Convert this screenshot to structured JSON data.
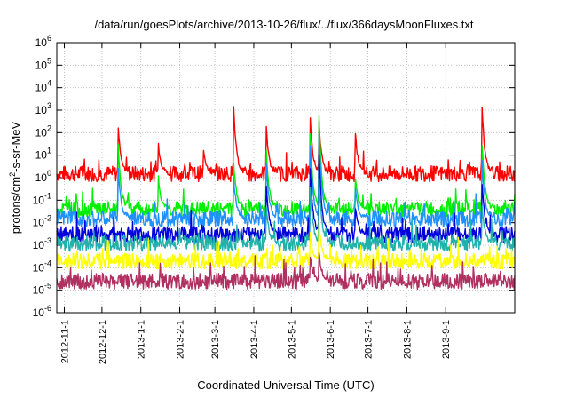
{
  "chart_data": {
    "type": "line",
    "title": "/data/run/goesPlots/archive/2013-10-26/flux/../flux/366daysMoonFluxes.txt",
    "xlabel": "Coordinated Universal Time (UTC)",
    "ylabel": "protons/cm2-s-sr-MeV",
    "y_scale": "log",
    "ylim": [
      1e-06,
      1000000.0
    ],
    "xlim": [
      "2012-10-26",
      "2013-10-26"
    ],
    "grid": true,
    "legend": "none",
    "y_ticks": [
      {
        "value": 1e-06,
        "base": "10",
        "exp": "-6"
      },
      {
        "value": 1e-05,
        "base": "10",
        "exp": "-5"
      },
      {
        "value": 0.0001,
        "base": "10",
        "exp": "-4"
      },
      {
        "value": 0.001,
        "base": "10",
        "exp": "-3"
      },
      {
        "value": 0.01,
        "base": "10",
        "exp": "-2"
      },
      {
        "value": 0.1,
        "base": "10",
        "exp": "-1"
      },
      {
        "value": 1,
        "base": "10",
        "exp": "0"
      },
      {
        "value": 10.0,
        "base": "10",
        "exp": "1"
      },
      {
        "value": 100.0,
        "base": "10",
        "exp": "2"
      },
      {
        "value": 1000.0,
        "base": "10",
        "exp": "3"
      },
      {
        "value": 10000.0,
        "base": "10",
        "exp": "4"
      },
      {
        "value": 100000.0,
        "base": "10",
        "exp": "5"
      },
      {
        "value": 1000000.0,
        "base": "10",
        "exp": "6"
      }
    ],
    "x_ticks": [
      "2012-11-1",
      "2012-12-1",
      "2013-1-1",
      "2013-2-1",
      "2013-3-1",
      "2013-4-1",
      "2013-5-1",
      "2013-6-1",
      "2013-7-1",
      "2013-8-1",
      "2013-9-1"
    ],
    "series": [
      {
        "color": "#ff0000",
        "baseline": 1.5,
        "spikes": [
          [
            "2012-12-14",
            200
          ],
          [
            "2013-1-15",
            30
          ],
          [
            "2013-2-20",
            20
          ],
          [
            "2013-3-16",
            1500
          ],
          [
            "2013-4-11",
            200
          ],
          [
            "2013-5-16",
            400
          ],
          [
            "2013-5-23",
            300
          ],
          [
            "2013-6-21",
            100
          ],
          [
            "2013-9-30",
            1200
          ]
        ]
      },
      {
        "color": "#00ee00",
        "baseline": 0.04,
        "spikes": [
          [
            "2012-12-14",
            30
          ],
          [
            "2013-1-15",
            1
          ],
          [
            "2013-3-16",
            5
          ],
          [
            "2013-4-11",
            20
          ],
          [
            "2013-5-16",
            80
          ],
          [
            "2013-5-23",
            500
          ],
          [
            "2013-6-21",
            1
          ],
          [
            "2013-9-30",
            30
          ]
        ]
      },
      {
        "color": "#1e90ff",
        "baseline": 0.015,
        "spikes": [
          [
            "2012-12-14",
            3
          ],
          [
            "2013-3-16",
            1
          ],
          [
            "2013-4-11",
            5
          ],
          [
            "2013-5-16",
            30
          ],
          [
            "2013-5-23",
            100
          ],
          [
            "2013-6-21",
            0.3
          ],
          [
            "2013-9-30",
            5
          ]
        ]
      },
      {
        "color": "#0000dd",
        "baseline": 0.003,
        "spikes": [
          [
            "2013-4-11",
            0.5
          ],
          [
            "2013-5-16",
            3
          ],
          [
            "2013-5-23",
            10
          ],
          [
            "2013-6-21",
            0.05
          ],
          [
            "2013-9-30",
            0.5
          ]
        ]
      },
      {
        "color": "#20b2aa",
        "baseline": 0.0012,
        "spikes": [
          [
            "2013-4-11",
            0.05
          ],
          [
            "2013-5-16",
            0.3
          ],
          [
            "2013-5-23",
            1
          ],
          [
            "2013-9-30",
            0.05
          ]
        ]
      },
      {
        "color": "#ffff00",
        "baseline": 0.0002,
        "spikes": [
          [
            "2013-5-16",
            0.003
          ],
          [
            "2013-5-23",
            0.01
          ]
        ]
      },
      {
        "color": "#b03060",
        "baseline": 2.5e-05,
        "spikes": [
          [
            "2013-5-16",
            0.0003
          ],
          [
            "2013-5-23",
            0.0005
          ]
        ]
      }
    ]
  }
}
